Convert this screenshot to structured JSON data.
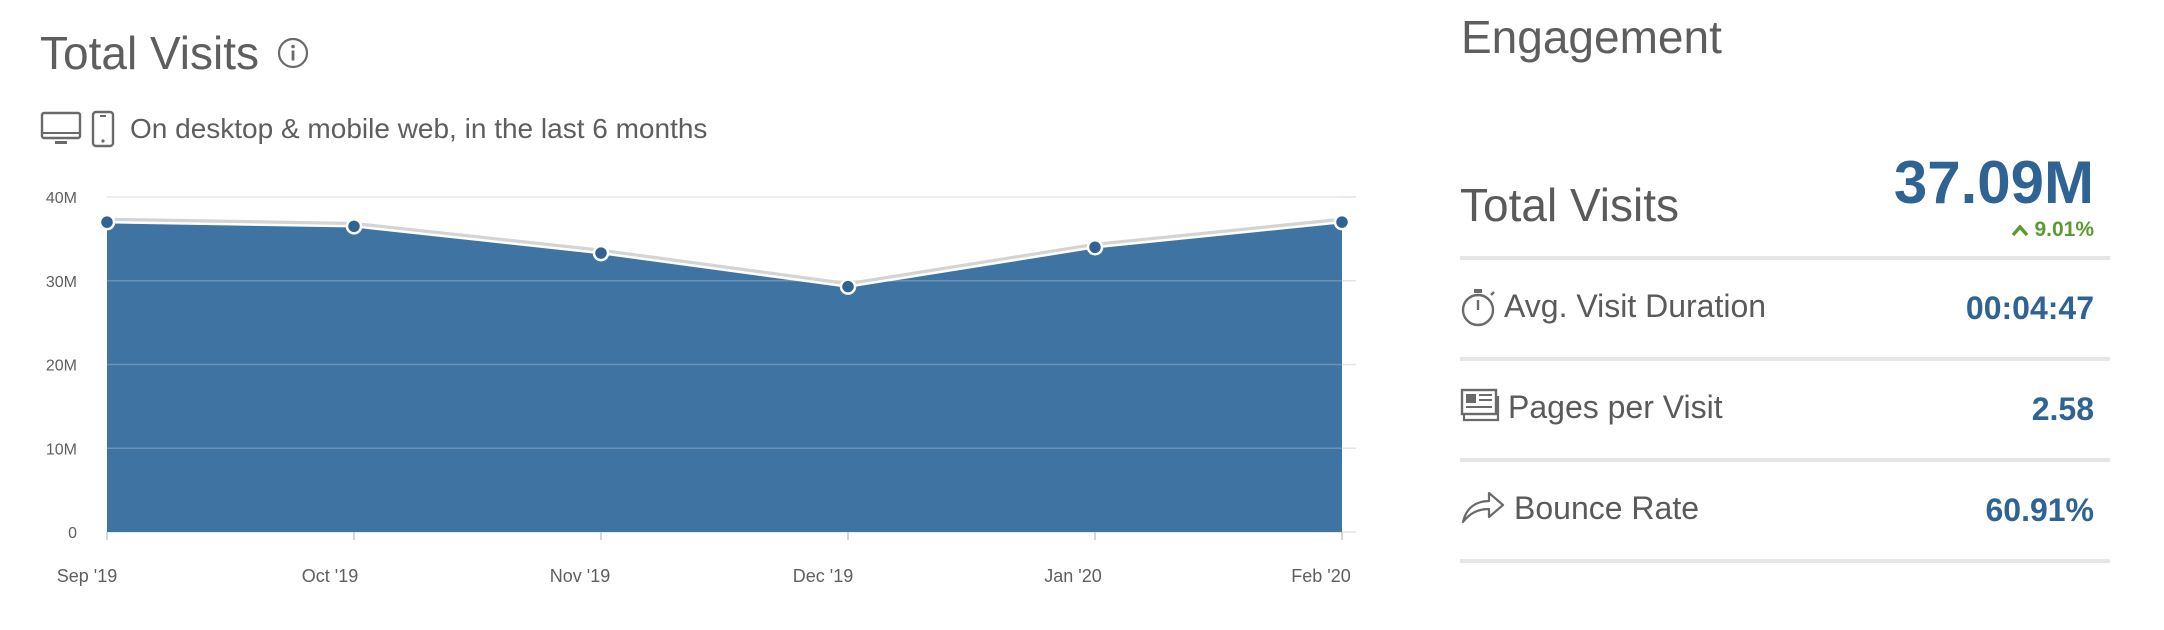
{
  "header": {
    "title": "Total Visits",
    "subtitle": "On desktop & mobile web, in the last 6 months"
  },
  "engagement": {
    "title": "Engagement",
    "total_visits": {
      "label": "Total Visits",
      "value": "37.09M",
      "change": "9.01%"
    },
    "avg_visit_duration": {
      "label": "Avg. Visit Duration",
      "value": "00:04:47",
      "icon": "stopwatch-icon"
    },
    "pages_per_visit": {
      "label": "Pages per Visit",
      "value": "2.58",
      "icon": "pages-icon"
    },
    "bounce_rate": {
      "label": "Bounce Rate",
      "value": "60.91%",
      "icon": "bounce-arrow-icon"
    }
  },
  "colors": {
    "area_fill": "#3f74a2",
    "accent": "#2f6394",
    "positive": "#5b9a2e"
  },
  "chart_data": {
    "type": "area",
    "categories": [
      "Sep '19",
      "Oct '19",
      "Nov '19",
      "Dec '19",
      "Jan '20",
      "Feb '20"
    ],
    "values": [
      37000000,
      36500000,
      33300000,
      29300000,
      34000000,
      37000000
    ],
    "ytick_labels": [
      "0",
      "10M",
      "20M",
      "30M",
      "40M"
    ],
    "yticks": [
      0,
      10000000,
      20000000,
      30000000,
      40000000
    ],
    "ylim": [
      0,
      40000000
    ],
    "grid": true,
    "legend": "none"
  }
}
